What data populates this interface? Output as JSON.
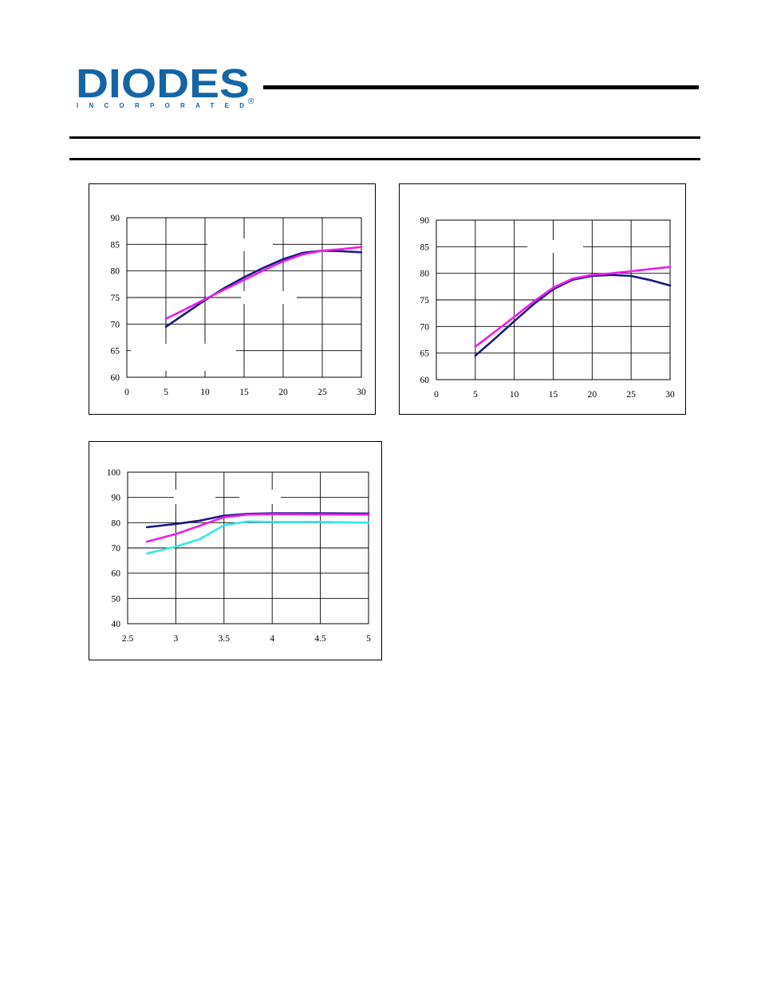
{
  "logo": {
    "wordmark": "DIODES",
    "subline": "INCORPORATED",
    "registered": "®",
    "brand_color": "#1565a6"
  },
  "chart_data": [
    {
      "type": "line",
      "xticks": [
        "0",
        "5",
        "10",
        "15",
        "20",
        "25",
        "30"
      ],
      "yticks": [
        "60",
        "65",
        "70",
        "75",
        "80",
        "85",
        "90"
      ],
      "xlim": [
        0,
        30
      ],
      "ylim": [
        60,
        90
      ],
      "grid": true,
      "series": [
        {
          "color": "#1a1a80",
          "x": [
            5,
            7.5,
            10,
            12.5,
            15,
            17.5,
            20,
            22.5,
            25,
            27.5,
            30
          ],
          "y": [
            69.5,
            72,
            74.5,
            76.8,
            78.8,
            80.6,
            82.2,
            83.4,
            83.8,
            83.7,
            83.5
          ]
        },
        {
          "color": "#ee1cee",
          "x": [
            5,
            7.5,
            10,
            12.5,
            15,
            17.5,
            20,
            22.5,
            25,
            27.5,
            30
          ],
          "y": [
            71,
            72.8,
            74.7,
            76.5,
            78.3,
            80.1,
            81.8,
            83.1,
            83.8,
            84.1,
            84.5
          ]
        }
      ]
    },
    {
      "type": "line",
      "xticks": [
        "0",
        "5",
        "10",
        "15",
        "20",
        "25",
        "30"
      ],
      "yticks": [
        "60",
        "65",
        "70",
        "75",
        "80",
        "85",
        "90"
      ],
      "xlim": [
        0,
        30
      ],
      "ylim": [
        60,
        90
      ],
      "grid": true,
      "series": [
        {
          "color": "#1a1a80",
          "x": [
            5,
            7.5,
            10,
            12.5,
            15,
            17.5,
            20,
            22.5,
            25,
            27.5,
            30
          ],
          "y": [
            64.5,
            67.7,
            71,
            74.2,
            77,
            78.8,
            79.5,
            79.7,
            79.5,
            78.7,
            77.7
          ]
        },
        {
          "color": "#ee1cee",
          "x": [
            5,
            7.5,
            10,
            12.5,
            15,
            17.5,
            20,
            22.5,
            25,
            27.5,
            30
          ],
          "y": [
            66.2,
            69,
            71.8,
            74.7,
            77.3,
            79,
            79.7,
            80,
            80.4,
            80.8,
            81.2
          ]
        }
      ]
    },
    {
      "type": "line",
      "xticks": [
        "2.5",
        "3",
        "3.5",
        "4",
        "4.5",
        "5"
      ],
      "yticks": [
        "40",
        "50",
        "60",
        "70",
        "80",
        "90",
        "100"
      ],
      "xlim": [
        2.5,
        5
      ],
      "ylim": [
        40,
        100
      ],
      "grid": true,
      "series": [
        {
          "color": "#1a1a80",
          "x": [
            2.7,
            3,
            3.25,
            3.5,
            3.75,
            4,
            4.5,
            5
          ],
          "y": [
            78.2,
            79.5,
            80.8,
            82.8,
            83.5,
            83.7,
            83.7,
            83.6
          ]
        },
        {
          "color": "#ee1cee",
          "x": [
            2.7,
            3,
            3.25,
            3.5,
            3.75,
            4,
            4.5,
            5
          ],
          "y": [
            72.5,
            75.5,
            78.8,
            82.2,
            83.2,
            83.4,
            83.3,
            83.2
          ]
        },
        {
          "color": "#33e8e8",
          "x": [
            2.7,
            3,
            3.25,
            3.5,
            3.75,
            4,
            4.5,
            5
          ],
          "y": [
            67.8,
            70.5,
            73.5,
            79,
            80.5,
            80.3,
            80.3,
            80
          ]
        }
      ]
    }
  ]
}
